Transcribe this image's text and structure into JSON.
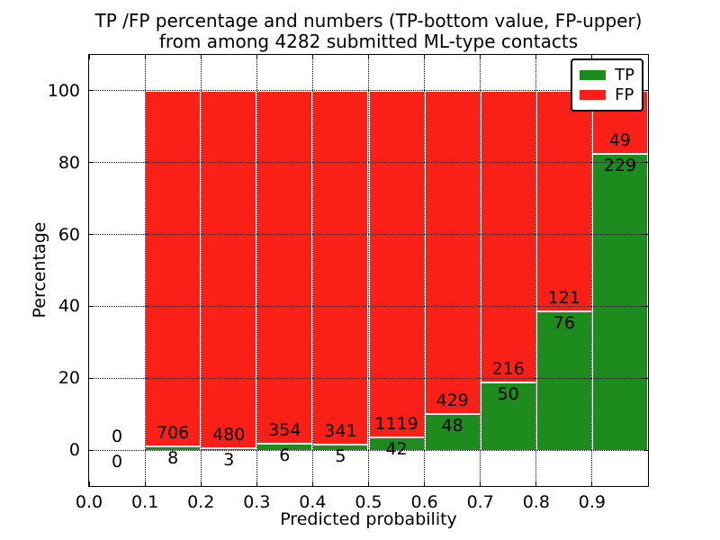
{
  "chart_data": {
    "type": "bar",
    "stacked": true,
    "percent_stacked_to": 100,
    "title": {
      "line1": "TP /FP percentage and numbers (TP-bottom value, FP-upper)",
      "line2": "from among 4282 submitted ML-type contacts"
    },
    "xlabel": "Predicted probability",
    "ylabel": "Percentage",
    "xlim": [
      0.0,
      1.0
    ],
    "ylim": [
      -10,
      110
    ],
    "xticks": [
      0.0,
      0.1,
      0.2,
      0.3,
      0.4,
      0.5,
      0.6,
      0.7,
      0.8,
      0.9
    ],
    "yticks": [
      0,
      20,
      40,
      60,
      80,
      100
    ],
    "grid": "dotted",
    "bins": {
      "starts": [
        0.0,
        0.1,
        0.2,
        0.3,
        0.4,
        0.5,
        0.6,
        0.7,
        0.8,
        0.9
      ],
      "width": 0.1
    },
    "series": [
      {
        "name": "TP",
        "color": "#1e8b1e",
        "counts": [
          0,
          8,
          3,
          6,
          5,
          42,
          48,
          50,
          76,
          229
        ]
      },
      {
        "name": "FP",
        "color": "#fa1f17",
        "counts": [
          0,
          706,
          480,
          354,
          341,
          1119,
          429,
          216,
          121,
          49
        ]
      }
    ],
    "tp_percent_per_bin": [
      0,
      1.12,
      0.62,
      1.67,
      1.45,
      3.62,
      10.06,
      18.8,
      38.58,
      82.37
    ],
    "legend": {
      "location": "upper right",
      "entries": [
        {
          "label": "TP",
          "color": "#1e8b1e"
        },
        {
          "label": "FP",
          "color": "#fa1f17"
        }
      ]
    }
  }
}
